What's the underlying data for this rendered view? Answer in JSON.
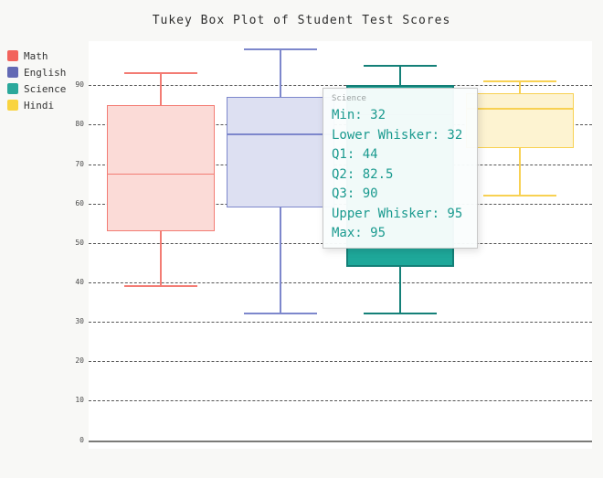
{
  "page": {
    "background": "#f8f8f6"
  },
  "chart_data": {
    "type": "boxplot",
    "title": "Tukey Box Plot of Student Test Scores",
    "legend_position": "top-left",
    "y_axis": {
      "ticks": [
        0,
        10,
        20,
        30,
        40,
        50,
        60,
        70,
        80,
        90
      ],
      "range": [
        0,
        101
      ],
      "gridlines": "dashed",
      "zero_line": "solid"
    },
    "series": [
      {
        "name": "Math",
        "legend_color": "#f2635c",
        "stroke": "#f37c74",
        "fill": "#fbdbd7",
        "emphasized": false,
        "stats": {
          "min": 39,
          "lower_whisker": 39,
          "q1": 53,
          "q2": 67.5,
          "q3": 85,
          "upper_whisker": 93,
          "max": 93
        }
      },
      {
        "name": "English",
        "legend_color": "#6269b4",
        "stroke": "#7d87cc",
        "fill": "#dde0f2",
        "emphasized": false,
        "stats": {
          "min": 32,
          "lower_whisker": 32,
          "q1": 59,
          "q2": 77.5,
          "q3": 87,
          "upper_whisker": 99,
          "max": 99
        }
      },
      {
        "name": "Science",
        "legend_color": "#2aa89b",
        "stroke": "#148078",
        "fill": "#1ea89a",
        "emphasized": true,
        "stats": {
          "min": 32,
          "lower_whisker": 32,
          "q1": 44,
          "q2": 82.5,
          "q3": 90,
          "upper_whisker": 95,
          "max": 95
        }
      },
      {
        "name": "Hindi",
        "legend_color": "#f9d43f",
        "stroke": "#f8d152",
        "fill": "#fdf3d1",
        "emphasized": false,
        "stats": {
          "min": 62,
          "lower_whisker": 62,
          "q1": 74,
          "q2": 84,
          "q3": 88,
          "upper_whisker": 91,
          "max": 91
        }
      }
    ],
    "tooltip": {
      "series": "Science",
      "text_color": "#1a9a8f",
      "lines": [
        "Min: 32",
        "Lower Whisker: 32",
        "Q1: 44",
        "Q2: 82.5",
        "Q3: 90",
        "Upper Whisker: 95",
        "Max: 95"
      ]
    }
  }
}
